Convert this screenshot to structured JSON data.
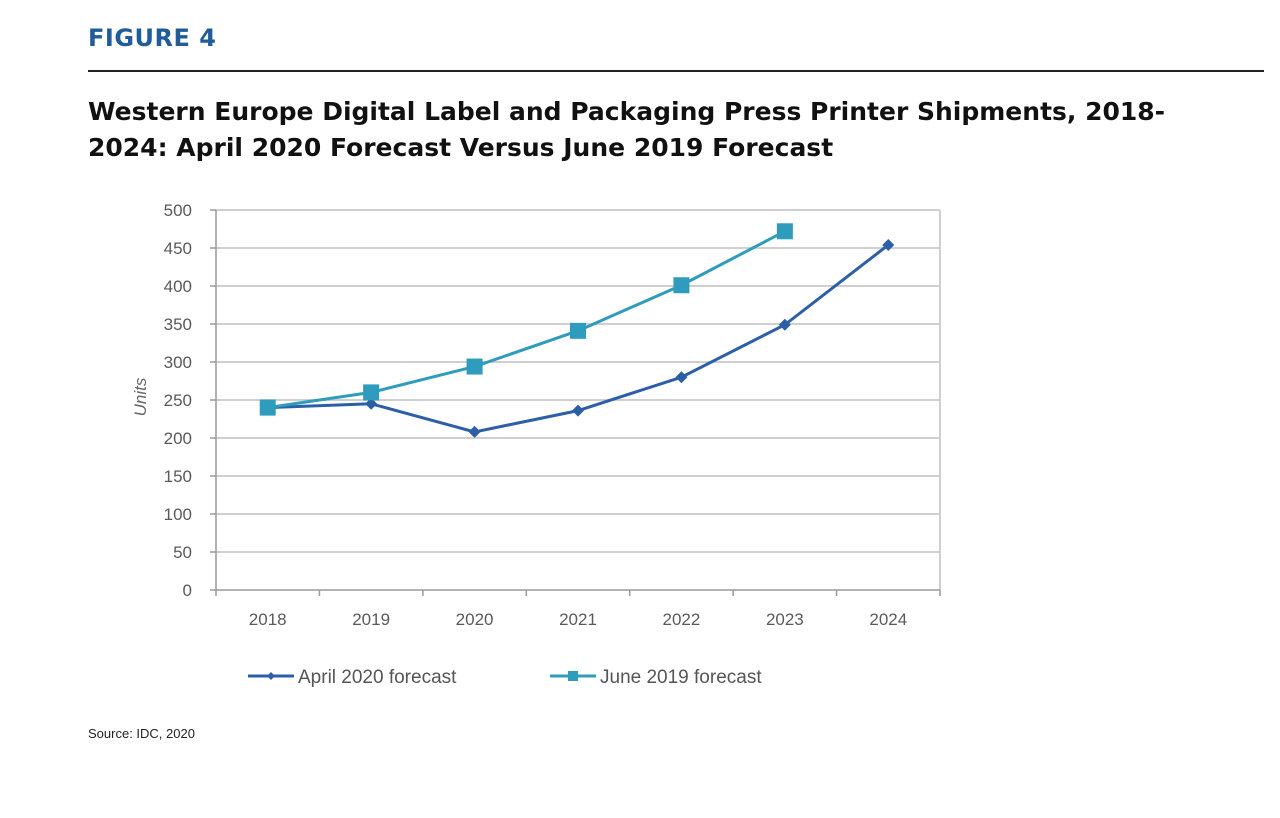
{
  "figure_label": "FIGURE 4",
  "source": "Source: IDC, 2020",
  "colors": {
    "april": "#2d5fa8",
    "june": "#2f9cbd",
    "grid": "#cfcfcf",
    "axis": "#9a9a9a",
    "title": "#1f5c99"
  },
  "chart_data": {
    "type": "line",
    "title": "Western Europe Digital Label and Packaging Press Printer Shipments, 2018-2024: April 2020 Forecast Versus June 2019 Forecast",
    "xlabel": "",
    "ylabel": "Units",
    "x": [
      "2018",
      "2019",
      "2020",
      "2021",
      "2022",
      "2023",
      "2024"
    ],
    "ylim": [
      0,
      500
    ],
    "yticks": [
      0,
      50,
      100,
      150,
      200,
      250,
      300,
      350,
      400,
      450,
      500
    ],
    "grid": true,
    "legend_position": "bottom",
    "series": [
      {
        "name": "April 2020 forecast",
        "marker": "diamond",
        "color_key": "april",
        "values": [
          240,
          245,
          208,
          236,
          280,
          349,
          454
        ]
      },
      {
        "name": "June 2019 forecast",
        "marker": "square",
        "color_key": "june",
        "values": [
          240,
          260,
          294,
          341,
          401,
          472,
          null
        ]
      }
    ]
  }
}
